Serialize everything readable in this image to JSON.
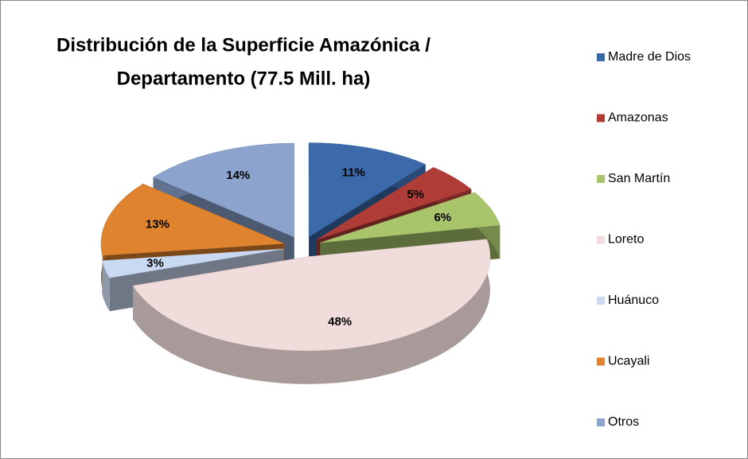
{
  "chart_data": {
    "type": "pie3d",
    "title": [
      "Distribución de la Superficie Amazónica /",
      "Departamento (77.5 Mill. ha)"
    ],
    "categories": [
      "Madre de Dios",
      "Amazonas",
      "San Martín",
      "Loreto",
      "Huánuco",
      "Ucayali",
      "Otros"
    ],
    "values": [
      11,
      5,
      6,
      48,
      3,
      13,
      14
    ],
    "value_labels": [
      "11%",
      "5%",
      "6%",
      "48%",
      "3%",
      "13%",
      "14%"
    ],
    "colors": [
      "#3b69a9",
      "#b03c38",
      "#a9c56c",
      "#f1dcdc",
      "#c9d9f1",
      "#e0832f",
      "#8ba3cd"
    ],
    "legend": "right"
  }
}
